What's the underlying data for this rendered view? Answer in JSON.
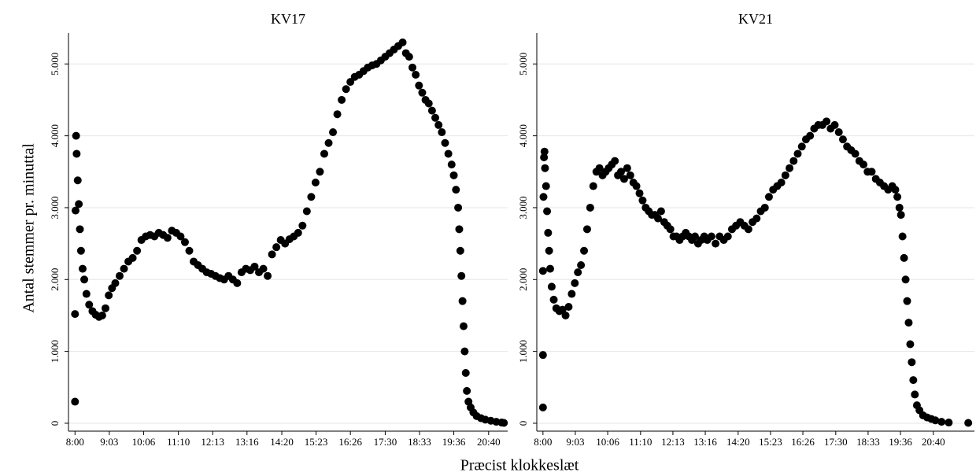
{
  "xlabel": "Præcist klokkeslæt",
  "ylabel": "Antal stemmer pr. minuttal",
  "chart_data": [
    {
      "type": "scatter",
      "title": "KV17",
      "color": "#000000",
      "grid": true,
      "xlim": [
        468,
        1275
      ],
      "ylim": [
        -110,
        5430
      ],
      "xticks": [
        {
          "value": 480,
          "label": "8:00"
        },
        {
          "value": 543,
          "label": "9:03"
        },
        {
          "value": 606,
          "label": "10:06"
        },
        {
          "value": 670,
          "label": "11:10"
        },
        {
          "value": 733,
          "label": "12:13"
        },
        {
          "value": 796,
          "label": "13:16"
        },
        {
          "value": 860,
          "label": "14:20"
        },
        {
          "value": 923,
          "label": "15:23"
        },
        {
          "value": 986,
          "label": "16:26"
        },
        {
          "value": 1050,
          "label": "17:30"
        },
        {
          "value": 1113,
          "label": "18:33"
        },
        {
          "value": 1176,
          "label": "19:36"
        },
        {
          "value": 1240,
          "label": "20:40"
        }
      ],
      "yticks": [
        0,
        {
          "value": 1000,
          "label": "1.000"
        },
        {
          "value": 2000,
          "label": "2.000"
        },
        {
          "value": 3000,
          "label": "3.000"
        },
        {
          "value": 4000,
          "label": "4.000"
        },
        {
          "value": 5000,
          "label": "5.000"
        }
      ],
      "x": [
        480,
        480,
        481,
        482,
        483,
        485,
        487,
        489,
        491,
        494,
        497,
        501,
        506,
        512,
        518,
        524,
        530,
        536,
        542,
        548,
        554,
        562,
        570,
        578,
        586,
        594,
        602,
        610,
        618,
        626,
        634,
        642,
        650,
        658,
        666,
        674,
        682,
        690,
        698,
        706,
        714,
        722,
        730,
        738,
        746,
        754,
        762,
        770,
        778,
        786,
        794,
        802,
        810,
        818,
        826,
        834,
        842,
        850,
        858,
        866,
        874,
        882,
        890,
        898,
        906,
        914,
        922,
        930,
        938,
        946,
        954,
        962,
        970,
        978,
        986,
        994,
        1002,
        1010,
        1018,
        1026,
        1034,
        1042,
        1050,
        1058,
        1066,
        1074,
        1082,
        1088,
        1094,
        1100,
        1106,
        1112,
        1118,
        1124,
        1130,
        1136,
        1142,
        1148,
        1154,
        1160,
        1166,
        1172,
        1176,
        1180,
        1184,
        1186,
        1188,
        1190,
        1192,
        1194,
        1196,
        1198,
        1200,
        1203,
        1207,
        1212,
        1218,
        1226,
        1234,
        1244,
        1254,
        1264,
        1268
      ],
      "values": [
        300,
        1520,
        2960,
        4000,
        3750,
        3380,
        3050,
        2700,
        2400,
        2150,
        2000,
        1800,
        1650,
        1560,
        1510,
        1480,
        1500,
        1600,
        1780,
        1880,
        1950,
        2050,
        2150,
        2250,
        2300,
        2400,
        2550,
        2600,
        2620,
        2600,
        2650,
        2620,
        2580,
        2680,
        2650,
        2600,
        2520,
        2400,
        2250,
        2200,
        2150,
        2100,
        2080,
        2050,
        2020,
        2000,
        2050,
        2000,
        1950,
        2100,
        2150,
        2130,
        2180,
        2100,
        2150,
        2050,
        2350,
        2450,
        2550,
        2500,
        2560,
        2600,
        2650,
        2750,
        2950,
        3150,
        3350,
        3500,
        3750,
        3900,
        4050,
        4300,
        4500,
        4650,
        4750,
        4820,
        4850,
        4900,
        4950,
        4980,
        5000,
        5050,
        5100,
        5150,
        5200,
        5250,
        5300,
        5150,
        5100,
        4950,
        4850,
        4700,
        4600,
        4500,
        4450,
        4350,
        4250,
        4150,
        4050,
        3900,
        3750,
        3600,
        3450,
        3250,
        3000,
        2700,
        2400,
        2050,
        1700,
        1350,
        1000,
        700,
        450,
        300,
        220,
        150,
        100,
        70,
        50,
        35,
        20,
        10,
        5
      ]
    },
    {
      "type": "scatter",
      "title": "KV21",
      "color": "#000000",
      "grid": true,
      "xlim": [
        468,
        1320
      ],
      "ylim": [
        -110,
        5430
      ],
      "xticks": [
        {
          "value": 480,
          "label": "8:00"
        },
        {
          "value": 543,
          "label": "9:03"
        },
        {
          "value": 606,
          "label": "10:06"
        },
        {
          "value": 670,
          "label": "11:10"
        },
        {
          "value": 733,
          "label": "12:13"
        },
        {
          "value": 796,
          "label": "13:16"
        },
        {
          "value": 860,
          "label": "14:20"
        },
        {
          "value": 923,
          "label": "15:23"
        },
        {
          "value": 986,
          "label": "16:26"
        },
        {
          "value": 1050,
          "label": "17:30"
        },
        {
          "value": 1113,
          "label": "18:33"
        },
        {
          "value": 1176,
          "label": "19:36"
        },
        {
          "value": 1240,
          "label": "20:40"
        }
      ],
      "yticks": [
        0,
        {
          "value": 1000,
          "label": "1.000"
        },
        {
          "value": 2000,
          "label": "2.000"
        },
        {
          "value": 3000,
          "label": "3.000"
        },
        {
          "value": 4000,
          "label": "4.000"
        },
        {
          "value": 5000,
          "label": "5.000"
        }
      ],
      "x": [
        480,
        480,
        480,
        481,
        482,
        483,
        484,
        486,
        488,
        490,
        492,
        494,
        497,
        501,
        506,
        512,
        518,
        524,
        530,
        536,
        542,
        548,
        554,
        560,
        566,
        572,
        578,
        584,
        590,
        596,
        602,
        608,
        614,
        620,
        626,
        632,
        638,
        644,
        650,
        656,
        662,
        668,
        674,
        680,
        686,
        692,
        698,
        704,
        710,
        716,
        722,
        728,
        734,
        740,
        746,
        752,
        758,
        764,
        770,
        776,
        782,
        788,
        794,
        800,
        808,
        816,
        824,
        832,
        840,
        848,
        856,
        864,
        872,
        880,
        888,
        896,
        904,
        912,
        920,
        928,
        936,
        944,
        952,
        960,
        968,
        976,
        984,
        992,
        1000,
        1008,
        1016,
        1024,
        1032,
        1040,
        1048,
        1056,
        1064,
        1072,
        1080,
        1088,
        1096,
        1104,
        1112,
        1120,
        1128,
        1136,
        1144,
        1152,
        1160,
        1166,
        1170,
        1174,
        1177,
        1180,
        1183,
        1186,
        1189,
        1192,
        1195,
        1198,
        1201,
        1204,
        1208,
        1213,
        1220,
        1228,
        1236,
        1244,
        1256,
        1270,
        1308
      ],
      "values": [
        220,
        950,
        2120,
        3150,
        3700,
        3780,
        3550,
        3300,
        2950,
        2650,
        2400,
        2150,
        1900,
        1720,
        1600,
        1560,
        1580,
        1500,
        1620,
        1800,
        1950,
        2100,
        2200,
        2400,
        2700,
        3000,
        3300,
        3500,
        3550,
        3450,
        3500,
        3550,
        3600,
        3650,
        3450,
        3500,
        3400,
        3550,
        3450,
        3350,
        3300,
        3200,
        3100,
        3000,
        2950,
        2900,
        2900,
        2850,
        2950,
        2800,
        2750,
        2700,
        2600,
        2600,
        2550,
        2600,
        2650,
        2600,
        2550,
        2600,
        2500,
        2550,
        2600,
        2550,
        2600,
        2500,
        2600,
        2550,
        2600,
        2700,
        2750,
        2800,
        2750,
        2700,
        2800,
        2850,
        2950,
        3000,
        3150,
        3250,
        3300,
        3350,
        3450,
        3550,
        3650,
        3750,
        3850,
        3950,
        4000,
        4100,
        4150,
        4150,
        4200,
        4100,
        4150,
        4050,
        3950,
        3850,
        3800,
        3750,
        3650,
        3600,
        3500,
        3500,
        3400,
        3350,
        3300,
        3250,
        3300,
        3250,
        3150,
        3000,
        2900,
        2600,
        2300,
        2000,
        1700,
        1400,
        1100,
        850,
        600,
        400,
        250,
        180,
        110,
        80,
        60,
        40,
        20,
        10,
        5
      ]
    }
  ]
}
